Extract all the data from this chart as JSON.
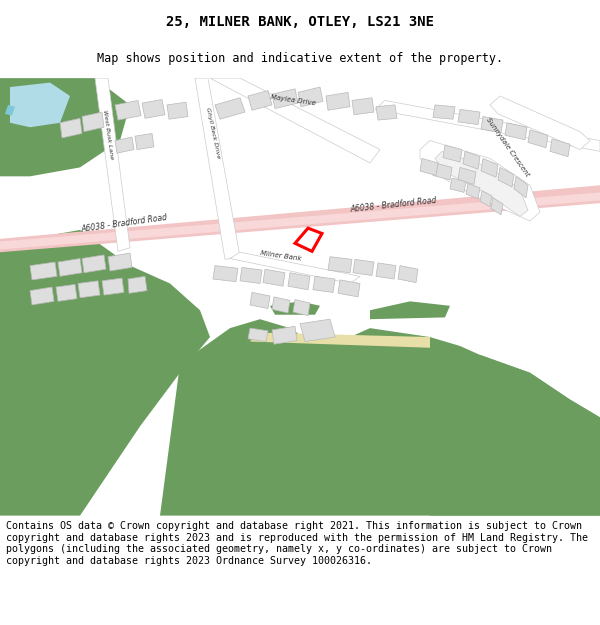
{
  "title": "25, MILNER BANK, OTLEY, LS21 3NE",
  "subtitle": "Map shows position and indicative extent of the property.",
  "footer": "Contains OS data © Crown copyright and database right 2021. This information is subject to Crown copyright and database rights 2023 and is reproduced with the permission of HM Land Registry. The polygons (including the associated geometry, namely x, y co-ordinates) are subject to Crown copyright and database rights 2023 Ordnance Survey 100026316.",
  "title_fontsize": 10,
  "subtitle_fontsize": 8.5,
  "footer_fontsize": 7.2,
  "map_bg": "#f2f2f2",
  "road_pink": "#f2c4c4",
  "road_white": "#ffffff",
  "green_color": "#6b9e5e",
  "green_light": "#8fbc6e",
  "building_color": "#dedede",
  "building_edge": "#b8b8b8",
  "highlight_color": "#ff0000",
  "water_color": "#7ec8d8",
  "water_light": "#b0dce8",
  "path_color": "#e8dfa8",
  "fig_width": 6.0,
  "fig_height": 6.25
}
